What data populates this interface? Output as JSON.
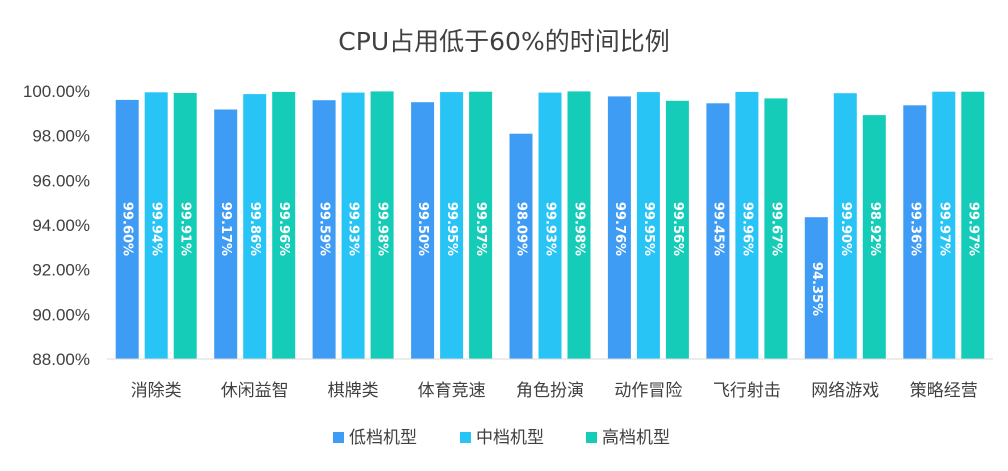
{
  "chart_data": {
    "type": "bar",
    "title": "CPU占用低于60%的时间比例",
    "xlabel": "",
    "ylabel": "",
    "ylim": [
      88,
      100
    ],
    "yticks": [
      "88.00%",
      "90.00%",
      "92.00%",
      "94.00%",
      "96.00%",
      "98.00%",
      "100.00%"
    ],
    "grid": false,
    "legend_position": "bottom",
    "categories": [
      "消除类",
      "休闲益智",
      "棋牌类",
      "体育竞速",
      "角色扮演",
      "动作冒险",
      "飞行射击",
      "网络游戏",
      "策略经营"
    ],
    "series": [
      {
        "name": "低档机型",
        "color": "#3f9cf5",
        "values": [
          99.6,
          99.17,
          99.59,
          99.5,
          98.09,
          99.76,
          99.45,
          94.35,
          99.36
        ],
        "labels": [
          "99.60%",
          "99.17%",
          "99.59%",
          "99.50%",
          "98.09%",
          "99.76%",
          "99.45%",
          "94.35%",
          "99.36%"
        ]
      },
      {
        "name": "中档机型",
        "color": "#29c4f6",
        "values": [
          99.94,
          99.86,
          99.93,
          99.95,
          99.93,
          99.95,
          99.96,
          99.9,
          99.97
        ],
        "labels": [
          "99.94%",
          "99.86%",
          "99.93%",
          "99.95%",
          "99.93%",
          "99.95%",
          "99.96%",
          "99.90%",
          "99.97%"
        ]
      },
      {
        "name": "高档机型",
        "color": "#14ccb8",
        "values": [
          99.91,
          99.96,
          99.98,
          99.97,
          99.98,
          99.56,
          99.67,
          98.92,
          99.97
        ],
        "labels": [
          "99.91%",
          "99.96%",
          "99.98%",
          "99.97%",
          "99.98%",
          "99.56%",
          "99.67%",
          "98.92%",
          "99.97%"
        ]
      }
    ]
  }
}
